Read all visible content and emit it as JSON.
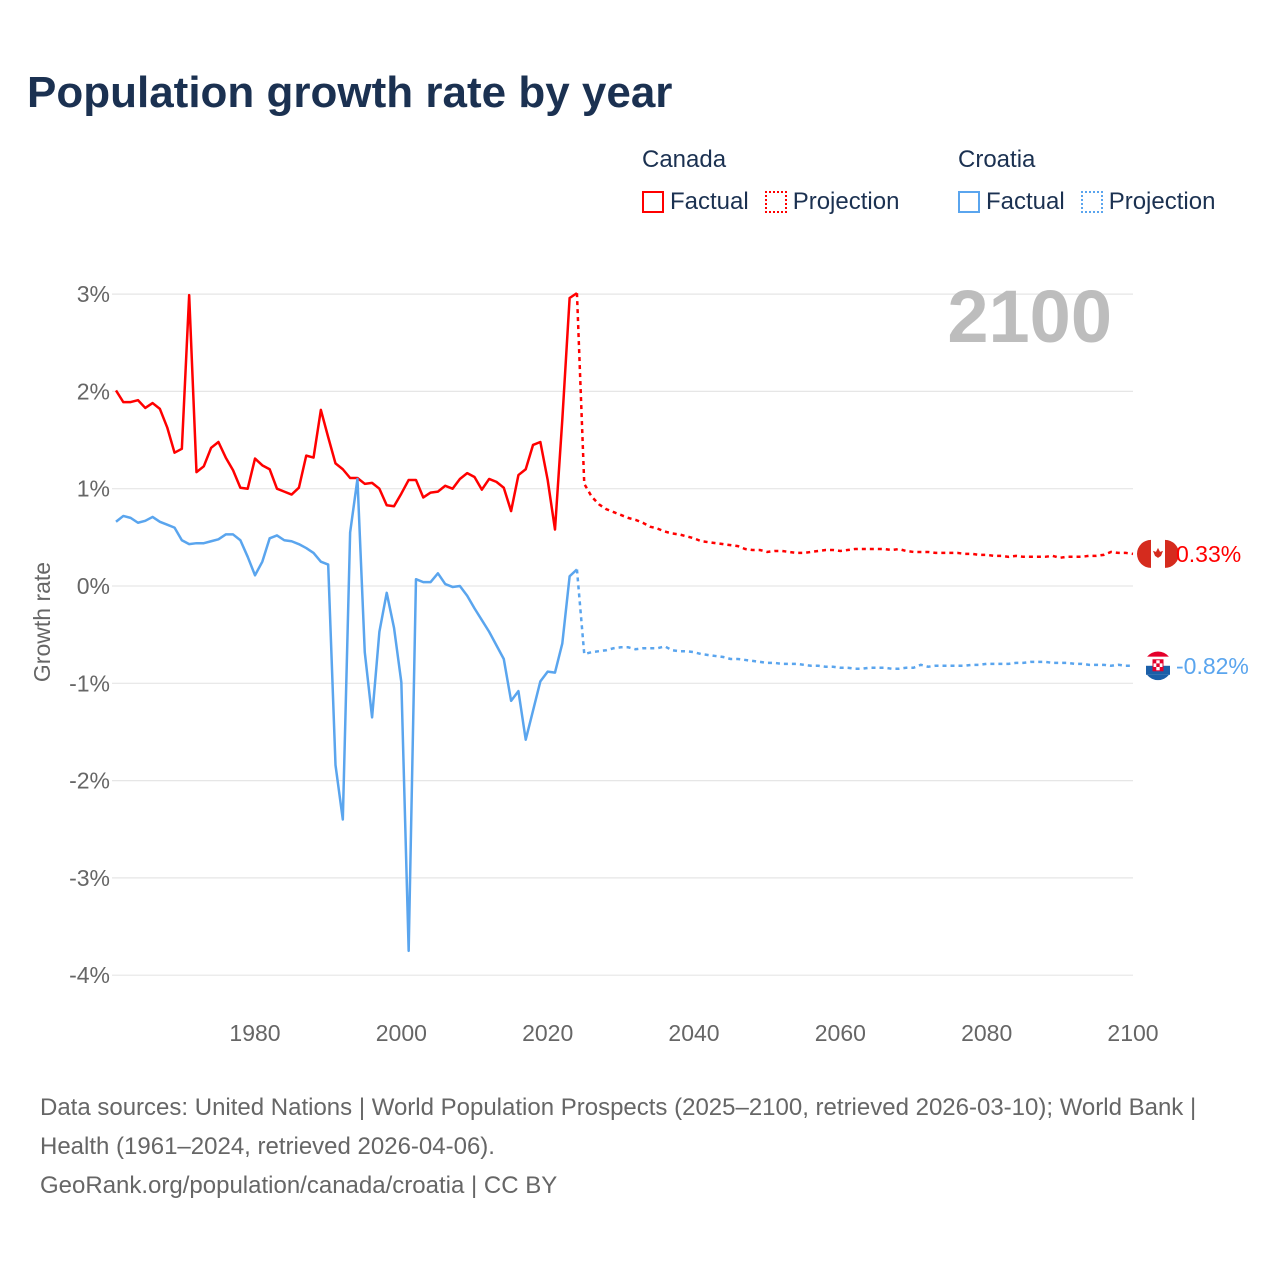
{
  "title": "Population growth rate by year",
  "legend": [
    {
      "country": "Canada",
      "factual_label": "Factual",
      "projection_label": "Projection",
      "color": "#ff0000"
    },
    {
      "country": "Croatia",
      "factual_label": "Factual",
      "projection_label": "Projection",
      "color": "#5aa5ee"
    }
  ],
  "year_label": "2100",
  "footer": {
    "sources": "Data sources: United Nations | World Population Prospects (2025–2100, retrieved 2026-03-10); World Bank | Health (1961–2024, retrieved 2026-04-06).",
    "credit": "GeoRank.org/population/canada/croatia | CC BY"
  },
  "chart_data": {
    "type": "line",
    "title": "Population growth rate by year",
    "xlabel": "",
    "ylabel": "Growth rate",
    "xlim": [
      1961,
      2100
    ],
    "ylim": [
      -4,
      3
    ],
    "grid": true,
    "x_ticks": [
      {
        "value": 1980,
        "label": "1980"
      },
      {
        "value": 2000,
        "label": "2000"
      },
      {
        "value": 2020,
        "label": "2020"
      },
      {
        "value": 2040,
        "label": "2040"
      },
      {
        "value": 2060,
        "label": "2060"
      },
      {
        "value": 2080,
        "label": "2080"
      },
      {
        "value": 2100,
        "label": "2100"
      }
    ],
    "y_ticks": [
      {
        "value": 3,
        "label": "3%"
      },
      {
        "value": 2,
        "label": "2%"
      },
      {
        "value": 1,
        "label": "1%"
      },
      {
        "value": 0,
        "label": "0%"
      },
      {
        "value": -1,
        "label": "-1%"
      },
      {
        "value": -2,
        "label": "-2%"
      },
      {
        "value": -3,
        "label": "-3%"
      },
      {
        "value": -4,
        "label": "-4%"
      }
    ],
    "series": [
      {
        "name": "Canada",
        "color": "#ff0000",
        "end_label": "0.33%",
        "factual_start": 1961,
        "factual": [
          2.01,
          1.89,
          1.89,
          1.91,
          1.83,
          1.88,
          1.82,
          1.63,
          1.37,
          1.41,
          2.99,
          1.17,
          1.23,
          1.42,
          1.48,
          1.32,
          1.19,
          1.01,
          1.0,
          1.31,
          1.24,
          1.2,
          1.0,
          0.97,
          0.94,
          1.01,
          1.34,
          1.32,
          1.81,
          1.53,
          1.26,
          1.2,
          1.11,
          1.11,
          1.05,
          1.06,
          1.0,
          0.83,
          0.82,
          0.95,
          1.09,
          1.09,
          0.91,
          0.96,
          0.97,
          1.03,
          1.0,
          1.1,
          1.16,
          1.12,
          0.99,
          1.1,
          1.07,
          1.01,
          0.77,
          1.14,
          1.2,
          1.45,
          1.48,
          1.09,
          0.58,
          1.71,
          2.96,
          3.01
        ],
        "projection_start": 2025,
        "projection": [
          1.05,
          0.92,
          0.84,
          0.79,
          0.76,
          0.73,
          0.7,
          0.68,
          0.65,
          0.61,
          0.59,
          0.56,
          0.54,
          0.53,
          0.51,
          0.49,
          0.46,
          0.45,
          0.44,
          0.43,
          0.42,
          0.41,
          0.38,
          0.37,
          0.37,
          0.35,
          0.36,
          0.36,
          0.35,
          0.34,
          0.34,
          0.35,
          0.36,
          0.37,
          0.37,
          0.36,
          0.37,
          0.38,
          0.38,
          0.38,
          0.38,
          0.38,
          0.37,
          0.38,
          0.36,
          0.35,
          0.35,
          0.35,
          0.34,
          0.34,
          0.34,
          0.34,
          0.33,
          0.33,
          0.32,
          0.32,
          0.31,
          0.31,
          0.3,
          0.31,
          0.3,
          0.3,
          0.3,
          0.3,
          0.31,
          0.29,
          0.3,
          0.3,
          0.3,
          0.31,
          0.31,
          0.32,
          0.35,
          0.34,
          0.34,
          0.33
        ]
      },
      {
        "name": "Croatia",
        "color": "#5aa5ee",
        "end_label": "-0.82%",
        "factual_start": 1961,
        "factual": [
          0.66,
          0.72,
          0.7,
          0.65,
          0.67,
          0.71,
          0.66,
          0.63,
          0.6,
          0.47,
          0.43,
          0.44,
          0.44,
          0.46,
          0.48,
          0.53,
          0.53,
          0.47,
          0.3,
          0.11,
          0.25,
          0.49,
          0.52,
          0.47,
          0.46,
          0.43,
          0.39,
          0.34,
          0.25,
          0.22,
          -1.84,
          -2.4,
          0.55,
          1.1,
          -0.68,
          -1.35,
          -0.47,
          -0.07,
          -0.43,
          -0.99,
          -3.75,
          0.07,
          0.04,
          0.04,
          0.13,
          0.02,
          -0.01,
          0.0,
          -0.1,
          -0.23,
          -0.35,
          -0.47,
          -0.61,
          -0.75,
          -1.18,
          -1.08,
          -1.58,
          -1.28,
          -0.98,
          -0.88,
          -0.89,
          -0.59,
          0.1,
          0.17
        ],
        "projection_start": 2025,
        "projection": [
          -0.7,
          -0.68,
          -0.67,
          -0.66,
          -0.64,
          -0.63,
          -0.63,
          -0.65,
          -0.64,
          -0.64,
          -0.64,
          -0.62,
          -0.66,
          -0.67,
          -0.67,
          -0.68,
          -0.7,
          -0.71,
          -0.72,
          -0.73,
          -0.75,
          -0.75,
          -0.76,
          -0.77,
          -0.78,
          -0.79,
          -0.79,
          -0.8,
          -0.8,
          -0.8,
          -0.81,
          -0.82,
          -0.82,
          -0.83,
          -0.83,
          -0.84,
          -0.84,
          -0.85,
          -0.85,
          -0.84,
          -0.84,
          -0.84,
          -0.85,
          -0.85,
          -0.84,
          -0.84,
          -0.81,
          -0.83,
          -0.82,
          -0.82,
          -0.82,
          -0.82,
          -0.82,
          -0.81,
          -0.81,
          -0.8,
          -0.8,
          -0.8,
          -0.8,
          -0.79,
          -0.79,
          -0.78,
          -0.78,
          -0.78,
          -0.79,
          -0.79,
          -0.79,
          -0.8,
          -0.8,
          -0.81,
          -0.81,
          -0.81,
          -0.82,
          -0.81,
          -0.82,
          -0.82
        ]
      }
    ]
  }
}
